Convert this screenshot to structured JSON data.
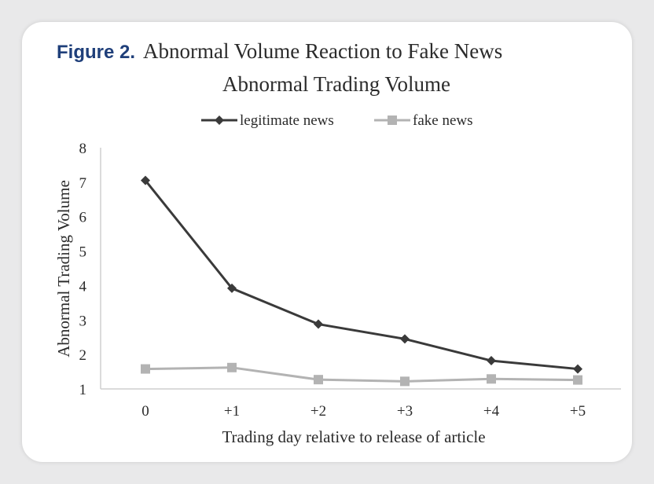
{
  "figure": {
    "label": "Figure 2.",
    "caption": "Abnormal Volume Reaction to Fake News"
  },
  "chart_data": {
    "type": "line",
    "title": "Abnormal Trading Volume",
    "xlabel": "Trading day relative to release of article",
    "ylabel": "Abnormal Trading Volume",
    "categories": [
      "0",
      "+1",
      "+2",
      "+3",
      "+4",
      "+5"
    ],
    "ylim": [
      1,
      8
    ],
    "yticks": [
      1,
      2,
      3,
      4,
      5,
      6,
      7,
      8
    ],
    "grid": false,
    "legend_position": "top-center",
    "series": [
      {
        "name": "legitimate news",
        "values": [
          7.05,
          3.92,
          2.88,
          2.45,
          1.82,
          1.58
        ],
        "color": "#3a3a3a",
        "marker": "diamond"
      },
      {
        "name": "fake news",
        "values": [
          1.58,
          1.62,
          1.27,
          1.22,
          1.29,
          1.26
        ],
        "color": "#b3b3b3",
        "marker": "square"
      }
    ]
  }
}
